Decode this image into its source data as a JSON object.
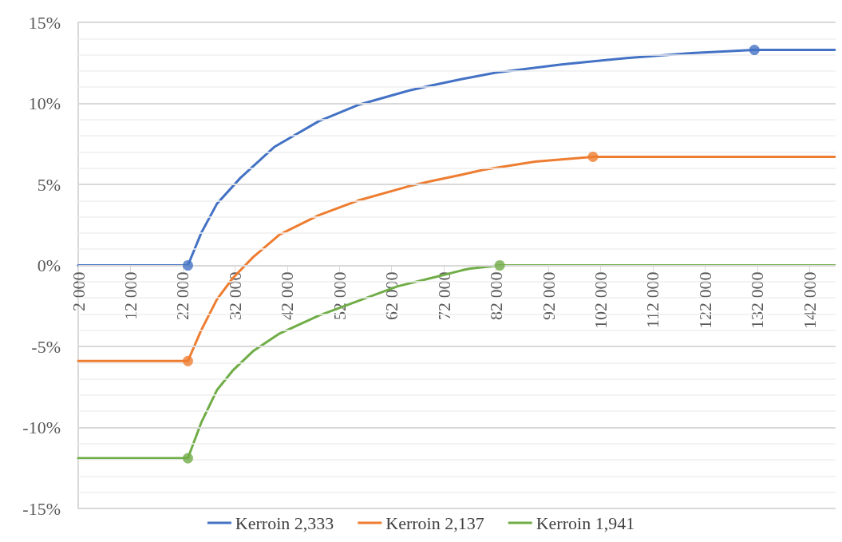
{
  "chart_data": {
    "type": "line",
    "legend": "bottom",
    "grid": "y",
    "marker": "none",
    "line_style": "solid",
    "xlim": [
      2000,
      147000
    ],
    "xticks": [
      {
        "value": 2000,
        "label": "2 000"
      },
      {
        "value": 12000,
        "label": "12 000"
      },
      {
        "value": 22000,
        "label": "22 000"
      },
      {
        "value": 32000,
        "label": "32 000"
      },
      {
        "value": 42000,
        "label": "42 000"
      },
      {
        "value": 52000,
        "label": "52 000"
      },
      {
        "value": 62000,
        "label": "62 000"
      },
      {
        "value": 72000,
        "label": "72 000"
      },
      {
        "value": 82000,
        "label": "82 000"
      },
      {
        "value": 92000,
        "label": "92 000"
      },
      {
        "value": 102000,
        "label": "102 000"
      },
      {
        "value": 112000,
        "label": "112 000"
      },
      {
        "value": 122000,
        "label": "122 000"
      },
      {
        "value": 132000,
        "label": "132 000"
      },
      {
        "value": 142000,
        "label": "142 000"
      }
    ],
    "ylim": [
      -15,
      15
    ],
    "yticks": [
      {
        "value": -15,
        "label": "-15%"
      },
      {
        "value": -14,
        "label": null
      },
      {
        "value": -13,
        "label": null
      },
      {
        "value": -12,
        "label": null
      },
      {
        "value": -11,
        "label": null
      },
      {
        "value": -10,
        "label": "-10%"
      },
      {
        "value": -9,
        "label": null
      },
      {
        "value": -8,
        "label": null
      },
      {
        "value": -7,
        "label": null
      },
      {
        "value": -6,
        "label": null
      },
      {
        "value": -5,
        "label": "-5%"
      },
      {
        "value": -4,
        "label": null
      },
      {
        "value": -3,
        "label": null
      },
      {
        "value": -2,
        "label": null
      },
      {
        "value": -1,
        "label": null
      },
      {
        "value": 0,
        "label": "0%"
      },
      {
        "value": 1,
        "label": null
      },
      {
        "value": 2,
        "label": null
      },
      {
        "value": 3,
        "label": null
      },
      {
        "value": 4,
        "label": null
      },
      {
        "value": 5,
        "label": "5%"
      },
      {
        "value": 6,
        "label": null
      },
      {
        "value": 7,
        "label": null
      },
      {
        "value": 8,
        "label": null
      },
      {
        "value": 9,
        "label": null
      },
      {
        "value": 10,
        "label": "10%"
      },
      {
        "value": 11,
        "label": null
      },
      {
        "value": 12,
        "label": null
      },
      {
        "value": 13,
        "label": null
      },
      {
        "value": 14,
        "label": null
      },
      {
        "value": 15,
        "label": "15%"
      }
    ],
    "series": [
      {
        "name": "Kerroin 2,333",
        "color": "#4472c4",
        "x": [
          2000,
          23000,
          25550,
          28550,
          33050,
          39500,
          48050,
          55550,
          65450,
          69500,
          75500,
          81950,
          94550,
          107000,
          119450,
          131450,
          147000
        ],
        "values": [
          0,
          0,
          2.0,
          3.8,
          5.4,
          7.3,
          8.9,
          9.9,
          10.8,
          11.1,
          11.5,
          11.9,
          12.4,
          12.8,
          13.1,
          13.3,
          13.3
        ]
      },
      {
        "name": "Kerroin 2,137",
        "color": "#ed7d31",
        "x": [
          2000,
          23000,
          25550,
          28550,
          31550,
          35450,
          40550,
          48050,
          55550,
          65450,
          69500,
          75500,
          79550,
          89450,
          100550,
          147000
        ],
        "values": [
          -5.9,
          -5.9,
          -4.0,
          -2.1,
          -0.8,
          0.5,
          1.9,
          3.1,
          4.0,
          4.9,
          5.2,
          5.6,
          5.9,
          6.4,
          6.7,
          6.7
        ]
      },
      {
        "name": "Kerroin 1,941",
        "color": "#70ad47",
        "x": [
          2000,
          23000,
          25550,
          28550,
          31550,
          35450,
          40550,
          48050,
          55550,
          63050,
          70550,
          75500,
          77000,
          82700,
          147000
        ],
        "values": [
          -11.9,
          -11.9,
          -9.7,
          -7.7,
          -6.5,
          -5.3,
          -4.2,
          -3.1,
          -2.2,
          -1.3,
          -0.7,
          -0.3,
          -0.2,
          0,
          0
        ]
      },
      {
        "type": "scatter",
        "marker": "circle",
        "color": "#4472c4",
        "x": [
          23000,
          131450
        ],
        "values": [
          0,
          13.3
        ]
      },
      {
        "type": "scatter",
        "marker": "circle",
        "color": "#ed7d31",
        "x": [
          23000,
          100550
        ],
        "values": [
          -5.9,
          6.7
        ]
      },
      {
        "type": "scatter",
        "marker": "circle",
        "color": "#70ad47",
        "x": [
          23000,
          82700
        ],
        "values": [
          -11.9,
          0
        ]
      }
    ]
  }
}
